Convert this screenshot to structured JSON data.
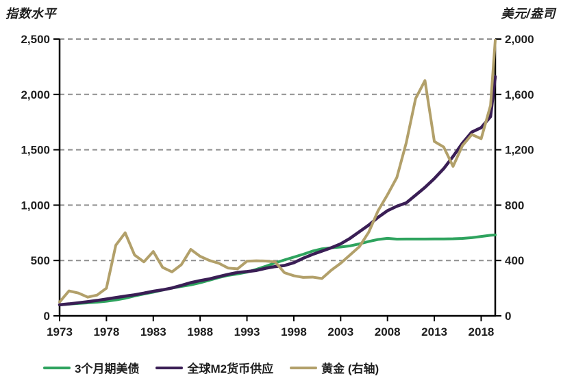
{
  "chart_data": {
    "type": "line",
    "title": "",
    "left_axis": {
      "label": "指数水平",
      "min": 0,
      "max": 2500,
      "step": 500,
      "tick_labels": [
        "0",
        "500",
        "1,000",
        "1,500",
        "2,000",
        "2,500"
      ]
    },
    "right_axis": {
      "label": "美元/盎司",
      "min": 0,
      "max": 2000,
      "step": 400,
      "tick_labels": [
        "0",
        "400",
        "800",
        "1,200",
        "1,600",
        "2,000"
      ]
    },
    "x_axis": {
      "min": 1973,
      "max": 2020,
      "ticks": [
        1973,
        1978,
        1983,
        1988,
        1993,
        1998,
        2003,
        2008,
        2013,
        2018
      ]
    },
    "grid": "horizontal-dashed",
    "grid_color": "#8f8f8f",
    "axis_color": "#000000",
    "text_color": "#1f1f1f",
    "legend_position": "bottom",
    "x": [
      1973,
      1974,
      1975,
      1976,
      1977,
      1978,
      1979,
      1980,
      1981,
      1982,
      1983,
      1984,
      1985,
      1986,
      1987,
      1988,
      1989,
      1990,
      1991,
      1992,
      1993,
      1994,
      1995,
      1996,
      1997,
      1998,
      1999,
      2000,
      2001,
      2002,
      2003,
      2004,
      2005,
      2006,
      2007,
      2008,
      2009,
      2010,
      2011,
      2012,
      2013,
      2014,
      2015,
      2016,
      2017,
      2018,
      2019,
      2020
    ],
    "series": [
      {
        "name": "3个月期美债",
        "axis": "left",
        "color": "#2ea35e",
        "values": [
          100,
          106,
          112,
          118,
          124,
          132,
          144,
          159,
          180,
          198,
          214,
          233,
          251,
          266,
          280,
          299,
          322,
          346,
          366,
          379,
          395,
          420,
          448,
          478,
          505,
          530,
          556,
          585,
          605,
          615,
          622,
          632,
          650,
          672,
          690,
          700,
          693,
          694,
          694,
          694,
          695,
          695,
          696,
          699,
          706,
          717,
          728,
          731
        ]
      },
      {
        "name": "全球M2货币供应",
        "axis": "left",
        "color": "#3a1e55",
        "values": [
          100,
          108,
          118,
          128,
          139,
          152,
          165,
          178,
          190,
          205,
          222,
          235,
          252,
          275,
          300,
          318,
          334,
          355,
          375,
          392,
          400,
          410,
          430,
          445,
          455,
          480,
          520,
          555,
          585,
          615,
          650,
          700,
          760,
          820,
          890,
          950,
          990,
          1020,
          1090,
          1160,
          1240,
          1330,
          1440,
          1560,
          1660,
          1700,
          1800,
          2160
        ]
      },
      {
        "name": "黄金 (右轴)",
        "axis": "right",
        "color": "#b2a06a",
        "values": [
          100,
          180,
          165,
          135,
          150,
          200,
          510,
          600,
          440,
          390,
          465,
          350,
          318,
          370,
          480,
          430,
          400,
          380,
          345,
          340,
          395,
          398,
          396,
          390,
          312,
          290,
          278,
          280,
          270,
          330,
          380,
          440,
          500,
          605,
          760,
          875,
          1000,
          1250,
          1570,
          1700,
          1260,
          1220,
          1080,
          1230,
          1310,
          1280,
          1520,
          1990
        ]
      }
    ]
  }
}
